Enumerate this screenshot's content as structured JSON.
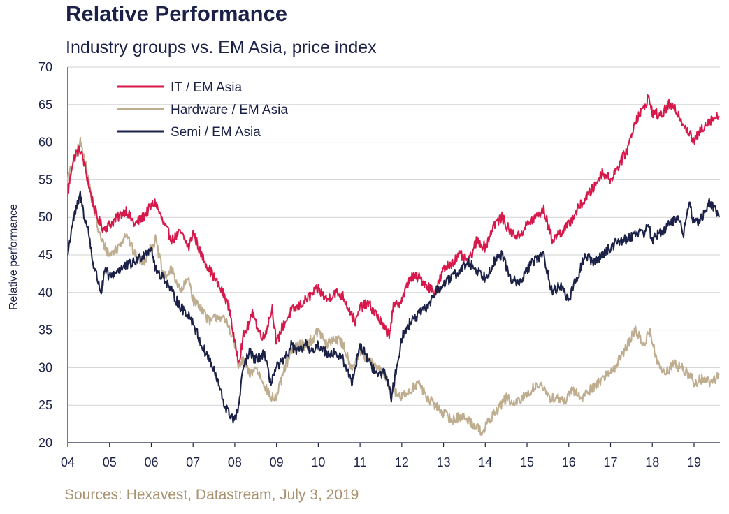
{
  "title": "Relative Performance",
  "subtitle": "Industry groups vs. EM Asia, price index",
  "source": "Sources: Hexavest, Datastream, July 3, 2019",
  "colors": {
    "it": "#d6184a",
    "hardware": "#bfad8f",
    "semi": "#1b2147",
    "grid": "#d2d2d2",
    "axis": "#1b2147"
  },
  "chart_data": {
    "type": "line",
    "title": "Relative Performance",
    "subtitle": "Industry groups vs. EM Asia, price index",
    "ylabel": "Relative performance",
    "xlabel": "",
    "ylim": [
      20,
      70
    ],
    "yticks": [
      20,
      25,
      30,
      35,
      40,
      45,
      50,
      55,
      60,
      65,
      70
    ],
    "xlim": [
      2004.0,
      2019.6
    ],
    "xticks": [
      {
        "x": 2004,
        "label": "04"
      },
      {
        "x": 2005,
        "label": "05"
      },
      {
        "x": 2006,
        "label": "06"
      },
      {
        "x": 2007,
        "label": "07"
      },
      {
        "x": 2008,
        "label": "08"
      },
      {
        "x": 2009,
        "label": "09"
      },
      {
        "x": 2010,
        "label": "10"
      },
      {
        "x": 2011,
        "label": "11"
      },
      {
        "x": 2012,
        "label": "12"
      },
      {
        "x": 2013,
        "label": "13"
      },
      {
        "x": 2014,
        "label": "14"
      },
      {
        "x": 2015,
        "label": "15"
      },
      {
        "x": 2016,
        "label": "16"
      },
      {
        "x": 2017,
        "label": "17"
      },
      {
        "x": 2018,
        "label": "18"
      },
      {
        "x": 2019,
        "label": "19"
      }
    ],
    "grid": true,
    "legend_position": "top-left",
    "series": [
      {
        "name": "IT / EM Asia",
        "color": "#d6184a",
        "x": [
          2004.0,
          2004.1,
          2004.2,
          2004.3,
          2004.4,
          2004.55,
          2004.7,
          2004.85,
          2005.0,
          2005.2,
          2005.4,
          2005.6,
          2005.8,
          2006.0,
          2006.1,
          2006.3,
          2006.5,
          2006.7,
          2006.9,
          2007.0,
          2007.2,
          2007.4,
          2007.6,
          2007.8,
          2007.9,
          2008.0,
          2008.1,
          2008.2,
          2008.35,
          2008.45,
          2008.55,
          2008.7,
          2008.8,
          2008.9,
          2009.0,
          2009.1,
          2009.2,
          2009.35,
          2009.5,
          2009.7,
          2009.9,
          2010.0,
          2010.2,
          2010.4,
          2010.6,
          2010.8,
          2010.9,
          2011.0,
          2011.2,
          2011.4,
          2011.5,
          2011.6,
          2011.7,
          2011.8,
          2012.0,
          2012.2,
          2012.4,
          2012.6,
          2012.8,
          2013.0,
          2013.2,
          2013.4,
          2013.6,
          2013.8,
          2014.0,
          2014.2,
          2014.4,
          2014.6,
          2014.8,
          2015.0,
          2015.2,
          2015.4,
          2015.6,
          2015.8,
          2016.0,
          2016.2,
          2016.4,
          2016.6,
          2016.8,
          2017.0,
          2017.2,
          2017.4,
          2017.6,
          2017.8,
          2017.9,
          2018.0,
          2018.2,
          2018.4,
          2018.6,
          2018.8,
          2018.9,
          2019.0,
          2019.2,
          2019.4,
          2019.6
        ],
        "values": [
          53,
          57,
          58.5,
          59,
          57,
          53,
          50,
          48.5,
          49,
          50,
          51,
          49,
          50,
          51.5,
          52,
          49,
          47,
          48,
          46,
          48,
          45,
          43,
          41,
          39,
          37,
          33,
          31,
          34,
          36,
          37.5,
          35,
          34,
          36,
          38,
          33,
          35,
          36,
          37.5,
          38,
          39,
          40,
          40.5,
          39,
          40,
          39.5,
          37,
          36,
          38,
          38.5,
          37,
          36,
          35,
          34.5,
          38,
          39,
          42,
          42,
          41,
          40,
          43,
          44,
          45,
          44,
          47,
          46,
          49,
          50,
          48,
          47.5,
          49,
          50,
          51,
          47,
          48,
          49,
          51,
          52.5,
          54,
          56,
          55,
          57,
          59,
          63,
          64.5,
          66,
          64,
          63.5,
          65,
          64,
          62,
          61,
          60,
          62,
          63,
          63.5
        ]
      },
      {
        "name": "Hardware / EM Asia",
        "color": "#bfad8f",
        "x": [
          2004.0,
          2004.1,
          2004.2,
          2004.3,
          2004.4,
          2004.5,
          2004.6,
          2004.7,
          2004.8,
          2005.0,
          2005.2,
          2005.4,
          2005.6,
          2005.8,
          2006.0,
          2006.1,
          2006.3,
          2006.5,
          2006.7,
          2006.9,
          2007.0,
          2007.2,
          2007.4,
          2007.6,
          2007.8,
          2007.9,
          2008.0,
          2008.1,
          2008.2,
          2008.35,
          2008.5,
          2008.7,
          2008.85,
          2009.0,
          2009.1,
          2009.2,
          2009.35,
          2009.5,
          2009.7,
          2009.9,
          2010.0,
          2010.2,
          2010.4,
          2010.6,
          2010.8,
          2011.0,
          2011.2,
          2011.4,
          2011.6,
          2011.75,
          2012.0,
          2012.2,
          2012.4,
          2012.6,
          2012.8,
          2013.0,
          2013.2,
          2013.4,
          2013.6,
          2013.8,
          2013.95,
          2014.1,
          2014.3,
          2014.5,
          2014.7,
          2014.9,
          2015.1,
          2015.3,
          2015.5,
          2015.7,
          2015.9,
          2016.1,
          2016.3,
          2016.5,
          2016.7,
          2016.9,
          2017.1,
          2017.3,
          2017.5,
          2017.6,
          2017.8,
          2017.95,
          2018.1,
          2018.3,
          2018.5,
          2018.7,
          2018.9,
          2019.0,
          2019.2,
          2019.4,
          2019.6
        ],
        "values": [
          55,
          57,
          58.5,
          60,
          58,
          55,
          52,
          49,
          47,
          45,
          46,
          48,
          45,
          44,
          46,
          47,
          42,
          43,
          40,
          42,
          39,
          38,
          36,
          37,
          36,
          35,
          33,
          30,
          31,
          29,
          30,
          28,
          26,
          26,
          28,
          30,
          32,
          33,
          33,
          34,
          35,
          33,
          34,
          33,
          30,
          32,
          31,
          30,
          29,
          27,
          26,
          27,
          28,
          26,
          25,
          24,
          23,
          23.5,
          23,
          22,
          21.5,
          23,
          24.5,
          26,
          25,
          26,
          27,
          28,
          26,
          26,
          25.5,
          27,
          26,
          27,
          28,
          29,
          30,
          32,
          34,
          35,
          33,
          35,
          31,
          29,
          30.5,
          30,
          29,
          28,
          28.5,
          28,
          29
        ]
      },
      {
        "name": "Semi / EM Asia",
        "color": "#1b2147",
        "x": [
          2004.0,
          2004.1,
          2004.2,
          2004.3,
          2004.4,
          2004.5,
          2004.6,
          2004.7,
          2004.8,
          2004.9,
          2005.0,
          2005.2,
          2005.4,
          2005.6,
          2005.8,
          2006.0,
          2006.1,
          2006.3,
          2006.5,
          2006.7,
          2006.9,
          2007.0,
          2007.2,
          2007.4,
          2007.6,
          2007.75,
          2007.85,
          2008.0,
          2008.1,
          2008.2,
          2008.35,
          2008.5,
          2008.7,
          2008.85,
          2009.0,
          2009.2,
          2009.35,
          2009.5,
          2009.7,
          2009.9,
          2010.0,
          2010.2,
          2010.4,
          2010.6,
          2010.8,
          2011.0,
          2011.2,
          2011.4,
          2011.6,
          2011.75,
          2012.0,
          2012.2,
          2012.4,
          2012.6,
          2012.8,
          2013.0,
          2013.2,
          2013.4,
          2013.6,
          2013.8,
          2014.0,
          2014.2,
          2014.4,
          2014.6,
          2014.8,
          2015.0,
          2015.2,
          2015.4,
          2015.6,
          2015.8,
          2016.0,
          2016.2,
          2016.4,
          2016.6,
          2016.8,
          2017.0,
          2017.2,
          2017.4,
          2017.6,
          2017.8,
          2017.9,
          2018.0,
          2018.2,
          2018.4,
          2018.6,
          2018.75,
          2018.9,
          2019.0,
          2019.1,
          2019.2,
          2019.35,
          2019.5,
          2019.6
        ],
        "values": [
          45,
          49,
          51,
          53,
          50,
          48,
          44,
          42,
          40,
          43,
          42,
          43,
          43.5,
          44,
          45,
          46,
          43,
          42,
          40,
          38,
          37,
          36,
          33,
          31,
          28,
          25,
          24,
          23,
          25,
          30,
          32,
          31,
          32,
          28,
          30,
          31,
          33,
          32,
          33,
          32,
          33,
          32,
          32,
          31,
          28,
          33,
          31,
          29,
          29.5,
          26,
          34,
          36,
          37,
          38,
          40,
          41,
          42,
          43,
          44,
          43,
          42,
          44,
          45,
          42,
          41,
          43,
          44.5,
          45,
          40,
          41,
          39,
          42,
          45,
          44,
          45,
          46,
          47,
          47,
          48,
          48,
          49,
          47,
          48,
          49,
          50,
          48,
          52,
          49,
          49.5,
          50,
          52,
          51,
          50
        ]
      }
    ]
  }
}
